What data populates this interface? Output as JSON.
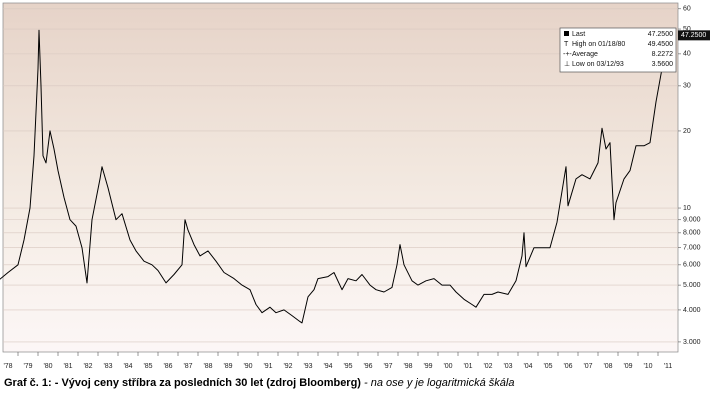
{
  "chart_data": {
    "type": "line",
    "log_scale": true,
    "grid": true,
    "caption": "Graf č. 1: - Vývoj ceny stříbra za posledních 30 let (zdroj Bloomberg)",
    "caption_note": " - na ose y je logaritmická škála",
    "stats": [
      {
        "label": "Last",
        "value": "47.2500"
      },
      {
        "label": "High on 01/18/80",
        "value": "49.4500"
      },
      {
        "label": "Average",
        "value": "8.2272"
      },
      {
        "label": "Low on 03/12/93",
        "value": "3.5600"
      }
    ],
    "xlim": [
      1978.25,
      2012.0
    ],
    "xticks": [
      {
        "value": 1978,
        "label": "'78"
      },
      {
        "value": 1979,
        "label": "'79"
      },
      {
        "value": 1980,
        "label": "'80"
      },
      {
        "value": 1981,
        "label": "'81"
      },
      {
        "value": 1982,
        "label": "'82"
      },
      {
        "value": 1983,
        "label": "'83"
      },
      {
        "value": 1984,
        "label": "'84"
      },
      {
        "value": 1985,
        "label": "'85"
      },
      {
        "value": 1986,
        "label": "'86"
      },
      {
        "value": 1987,
        "label": "'87"
      },
      {
        "value": 1988,
        "label": "'88"
      },
      {
        "value": 1989,
        "label": "'89"
      },
      {
        "value": 1990,
        "label": "'90"
      },
      {
        "value": 1991,
        "label": "'91"
      },
      {
        "value": 1992,
        "label": "'92"
      },
      {
        "value": 1993,
        "label": "'93"
      },
      {
        "value": 1994,
        "label": "'94"
      },
      {
        "value": 1995,
        "label": "'95"
      },
      {
        "value": 1996,
        "label": "'96"
      },
      {
        "value": 1997,
        "label": "'97"
      },
      {
        "value": 1998,
        "label": "'98"
      },
      {
        "value": 1999,
        "label": "'99"
      },
      {
        "value": 2000,
        "label": "'00"
      },
      {
        "value": 2001,
        "label": "'01"
      },
      {
        "value": 2002,
        "label": "'02"
      },
      {
        "value": 2003,
        "label": "'03"
      },
      {
        "value": 2004,
        "label": "'04"
      },
      {
        "value": 2005,
        "label": "'05"
      },
      {
        "value": 2006,
        "label": "'06"
      },
      {
        "value": 2007,
        "label": "'07"
      },
      {
        "value": 2008,
        "label": "'08"
      },
      {
        "value": 2009,
        "label": "'09"
      },
      {
        "value": 2010,
        "label": "'10"
      },
      {
        "value": 2011,
        "label": "'11"
      }
    ],
    "ylim": [
      2.74,
      63.2
    ],
    "yticks": [
      {
        "value": 3,
        "label": "3.000"
      },
      {
        "value": 4,
        "label": "4.000"
      },
      {
        "value": 5,
        "label": "5.000"
      },
      {
        "value": 6,
        "label": "6.000"
      },
      {
        "value": 7,
        "label": "7.000"
      },
      {
        "value": 8,
        "label": "8.000"
      },
      {
        "value": 9,
        "label": "9.000"
      },
      10,
      20,
      30,
      40,
      50,
      60
    ],
    "series": [
      {
        "color": "#000000",
        "x": [
          1978.0,
          1978.5,
          1979.0,
          1979.3,
          1979.6,
          1979.8,
          1980.0,
          1980.05,
          1980.15,
          1980.25,
          1980.4,
          1980.6,
          1980.8,
          1981.0,
          1981.3,
          1981.6,
          1981.9,
          1982.2,
          1982.45,
          1982.7,
          1983.1,
          1983.2,
          1983.5,
          1983.9,
          1984.2,
          1984.6,
          1984.9,
          1985.3,
          1985.7,
          1986.0,
          1986.4,
          1986.8,
          1987.2,
          1987.35,
          1987.5,
          1987.8,
          1988.1,
          1988.5,
          1988.9,
          1989.3,
          1989.8,
          1990.2,
          1990.6,
          1990.9,
          1991.2,
          1991.6,
          1991.9,
          1992.3,
          1992.7,
          1993.1,
          1993.2,
          1993.5,
          1993.8,
          1994.0,
          1994.5,
          1994.8,
          1995.2,
          1995.5,
          1995.9,
          1996.2,
          1996.6,
          1996.9,
          1997.3,
          1997.7,
          1997.95,
          1998.1,
          1998.3,
          1998.7,
          1999.0,
          1999.4,
          1999.8,
          2000.2,
          2000.6,
          2000.9,
          2001.3,
          2001.7,
          2001.9,
          2002.3,
          2002.7,
          2003.0,
          2003.5,
          2003.9,
          2004.2,
          2004.3,
          2004.4,
          2004.8,
          2005.2,
          2005.6,
          2005.95,
          2006.3,
          2006.4,
          2006.5,
          2006.9,
          2007.2,
          2007.6,
          2008.0,
          2008.2,
          2008.4,
          2008.6,
          2008.8,
          2008.9,
          2009.3,
          2009.6,
          2009.9,
          2010.3,
          2010.6,
          2010.9,
          2011.2,
          2011.3
        ],
        "values": [
          5.2,
          5.6,
          6.0,
          7.5,
          10,
          16,
          35,
          49.45,
          30,
          16,
          15,
          20,
          17,
          14,
          11,
          9,
          8.5,
          7,
          5.1,
          9,
          13,
          14.5,
          12,
          9.0,
          9.5,
          7.5,
          6.8,
          6.2,
          6.0,
          5.7,
          5.1,
          5.5,
          6.0,
          9.0,
          8.2,
          7.2,
          6.5,
          6.8,
          6.2,
          5.6,
          5.3,
          5.0,
          4.8,
          4.2,
          3.9,
          4.1,
          3.9,
          4.0,
          3.8,
          3.6,
          3.56,
          4.5,
          4.8,
          5.3,
          5.4,
          5.6,
          4.8,
          5.3,
          5.2,
          5.5,
          5.0,
          4.8,
          4.7,
          4.9,
          6.0,
          7.2,
          6.0,
          5.2,
          5.0,
          5.2,
          5.3,
          5.0,
          5.0,
          4.7,
          4.4,
          4.2,
          4.1,
          4.6,
          4.6,
          4.7,
          4.6,
          5.2,
          6.5,
          8.0,
          5.9,
          7.0,
          7.0,
          7.0,
          8.8,
          13.0,
          14.5,
          10.2,
          13.0,
          13.5,
          13.0,
          15,
          20.5,
          17,
          18,
          9.0,
          10.5,
          13,
          14,
          17.5,
          17.5,
          18,
          26,
          35,
          47.25
        ]
      }
    ]
  }
}
